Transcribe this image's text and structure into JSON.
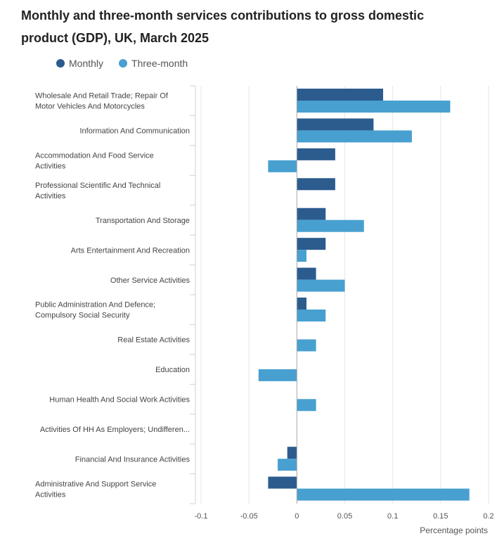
{
  "chart_data": {
    "type": "bar",
    "orientation": "horizontal",
    "title": "Monthly and three-month services contributions to gross domestic product (GDP), UK, March 2025",
    "xlabel": "Percentage points",
    "ylabel": "",
    "xlim": [
      -0.1,
      0.2
    ],
    "ticks": [
      "-0.1",
      "-0.05",
      "0",
      "0.05",
      "0.1",
      "0.15",
      "0.2"
    ],
    "tick_values": [
      -0.1,
      -0.05,
      0,
      0.05,
      0.1,
      0.15,
      0.2
    ],
    "grid": true,
    "legend": "top-left",
    "categories": [
      [
        "Wholesale And Retail Trade; Repair Of",
        "Motor Vehicles And Motorcycles"
      ],
      [
        "Information And Communication"
      ],
      [
        "Accommodation And Food Service",
        "Activities"
      ],
      [
        "Professional Scientific And Technical",
        "Activities"
      ],
      [
        "Transportation And Storage"
      ],
      [
        "Arts Entertainment And Recreation"
      ],
      [
        "Other Service Activities"
      ],
      [
        "Public Administration And Defence;",
        "Compulsory Social Security"
      ],
      [
        "Real Estate Activities"
      ],
      [
        "Education"
      ],
      [
        "Human Health And Social Work Activities"
      ],
      [
        "Activities Of HH As Employers; Undifferen..."
      ],
      [
        "Financial And Insurance Activities"
      ],
      [
        "Administrative And Support Service",
        "Activities"
      ]
    ],
    "series": [
      {
        "name": "Monthly",
        "color": "#2c5b8e",
        "values": [
          0.09,
          0.08,
          0.04,
          0.04,
          0.03,
          0.03,
          0.02,
          0.01,
          0.0,
          0.0,
          0.0,
          0.0,
          -0.01,
          -0.03
        ]
      },
      {
        "name": "Three-month",
        "color": "#47a0d0",
        "values": [
          0.16,
          0.12,
          -0.03,
          0.0,
          0.07,
          0.01,
          0.05,
          0.03,
          0.02,
          -0.04,
          0.02,
          0.0,
          -0.02,
          0.18
        ]
      }
    ]
  }
}
